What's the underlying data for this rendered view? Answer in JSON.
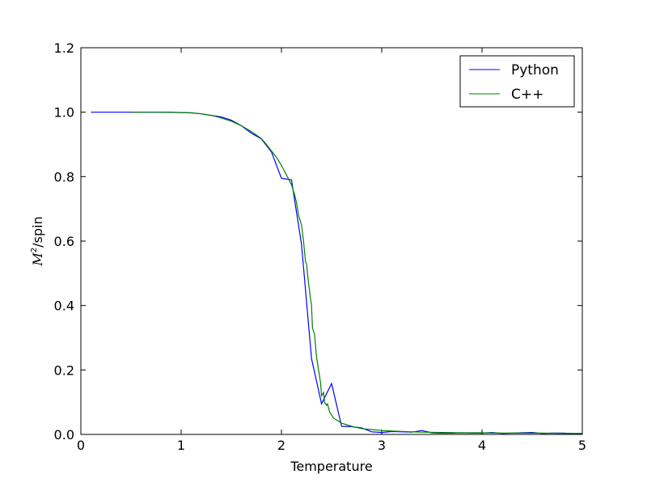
{
  "chart_data": {
    "type": "line",
    "title": "",
    "xlabel": "Temperature",
    "ylabel_main": "M",
    "ylabel_sup": "2",
    "ylabel_rest": "/spin",
    "xlim": [
      0,
      5
    ],
    "ylim": [
      0,
      1.2
    ],
    "xticks": [
      0,
      1,
      2,
      3,
      4,
      5
    ],
    "xtick_labels": [
      "0",
      "1",
      "2",
      "3",
      "4",
      "5"
    ],
    "yticks": [
      0,
      0.2,
      0.4,
      0.6,
      0.8,
      1.0,
      1.2
    ],
    "ytick_labels": [
      "0.0",
      "0.2",
      "0.4",
      "0.6",
      "0.8",
      "1.0",
      "1.2"
    ],
    "grid": false,
    "legend_position": "top-right",
    "series": [
      {
        "name": "Python",
        "color": "#0000ff",
        "x": [
          0.1,
          0.2,
          0.3,
          0.4,
          0.5,
          0.6,
          0.7,
          0.8,
          0.9,
          1.0,
          1.1,
          1.2,
          1.3,
          1.4,
          1.5,
          1.6,
          1.7,
          1.8,
          1.9,
          2.0,
          2.1,
          2.2,
          2.3,
          2.4,
          2.5,
          2.6,
          2.7,
          2.8,
          2.9,
          3.0,
          3.1,
          3.2,
          3.3,
          3.4,
          3.5,
          3.6,
          3.7,
          3.8,
          3.9,
          4.0,
          4.1,
          4.2,
          4.3,
          4.4,
          4.5,
          4.6,
          4.7,
          4.8,
          4.9,
          5.0
        ],
        "y": [
          1.0,
          1.0,
          1.0,
          1.0,
          1.0,
          1.0,
          1.0,
          1.0,
          1.0,
          0.999,
          0.998,
          0.995,
          0.99,
          0.985,
          0.975,
          0.958,
          0.935,
          0.917,
          0.877,
          0.795,
          0.79,
          0.59,
          0.235,
          0.095,
          0.158,
          0.025,
          0.024,
          0.02,
          0.008,
          0.006,
          0.009,
          0.008,
          0.007,
          0.012,
          0.005,
          0.004,
          0.004,
          0.005,
          0.004,
          0.004,
          0.006,
          0.003,
          0.004,
          0.005,
          0.006,
          0.003,
          0.004,
          0.004,
          0.003,
          0.003
        ]
      },
      {
        "name": "C++",
        "color": "#008000",
        "x": [
          0.5,
          0.75,
          1.0,
          1.1,
          1.2,
          1.3,
          1.4,
          1.5,
          1.6,
          1.7,
          1.8,
          1.85,
          1.9,
          1.95,
          2.0,
          2.05,
          2.1,
          2.13,
          2.15,
          2.17,
          2.2,
          2.22,
          2.24,
          2.25,
          2.27,
          2.29,
          2.3,
          2.31,
          2.32,
          2.33,
          2.35,
          2.37,
          2.39,
          2.4,
          2.42,
          2.43,
          2.45,
          2.46,
          2.48,
          2.5,
          2.52,
          2.55,
          2.6,
          2.7,
          2.8,
          2.9,
          3.0,
          3.2,
          3.4,
          3.6,
          3.8,
          4.0,
          4.2,
          4.4,
          4.6,
          4.8,
          5.0
        ],
        "y": [
          1.0,
          1.0,
          0.999,
          0.998,
          0.995,
          0.99,
          0.982,
          0.972,
          0.958,
          0.94,
          0.918,
          0.9,
          0.88,
          0.86,
          0.835,
          0.805,
          0.775,
          0.745,
          0.72,
          0.68,
          0.65,
          0.6,
          0.535,
          0.53,
          0.47,
          0.42,
          0.4,
          0.33,
          0.32,
          0.31,
          0.24,
          0.2,
          0.16,
          0.12,
          0.13,
          0.1,
          0.09,
          0.095,
          0.07,
          0.06,
          0.05,
          0.045,
          0.035,
          0.025,
          0.018,
          0.015,
          0.012,
          0.009,
          0.007,
          0.006,
          0.005,
          0.005,
          0.004,
          0.004,
          0.004,
          0.003,
          0.003
        ]
      }
    ]
  }
}
